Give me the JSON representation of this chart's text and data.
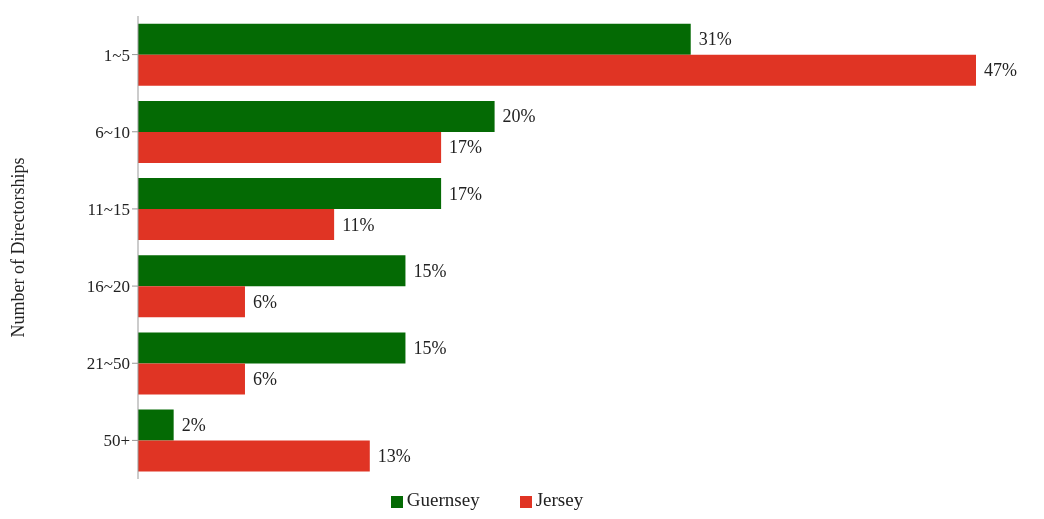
{
  "chart_data": {
    "type": "bar",
    "orientation": "horizontal",
    "ylabel": "Number of Directorships",
    "categories": [
      "1~5",
      "6~10",
      "11~15",
      "16~20",
      "21~50",
      "50+"
    ],
    "series": [
      {
        "name": "Guernsey",
        "color": "#046a04",
        "values": [
          31,
          20,
          17,
          15,
          15,
          2
        ],
        "value_labels": [
          "31%",
          "20%",
          "17%",
          "15%",
          "15%",
          "2%"
        ]
      },
      {
        "name": "Jersey",
        "color": "#e03424",
        "values": [
          47,
          17,
          11,
          6,
          6,
          13
        ],
        "value_labels": [
          "47%",
          "17%",
          "11%",
          "6%",
          "6%",
          "13%"
        ]
      }
    ],
    "legend": "bottom",
    "grid": false
  }
}
